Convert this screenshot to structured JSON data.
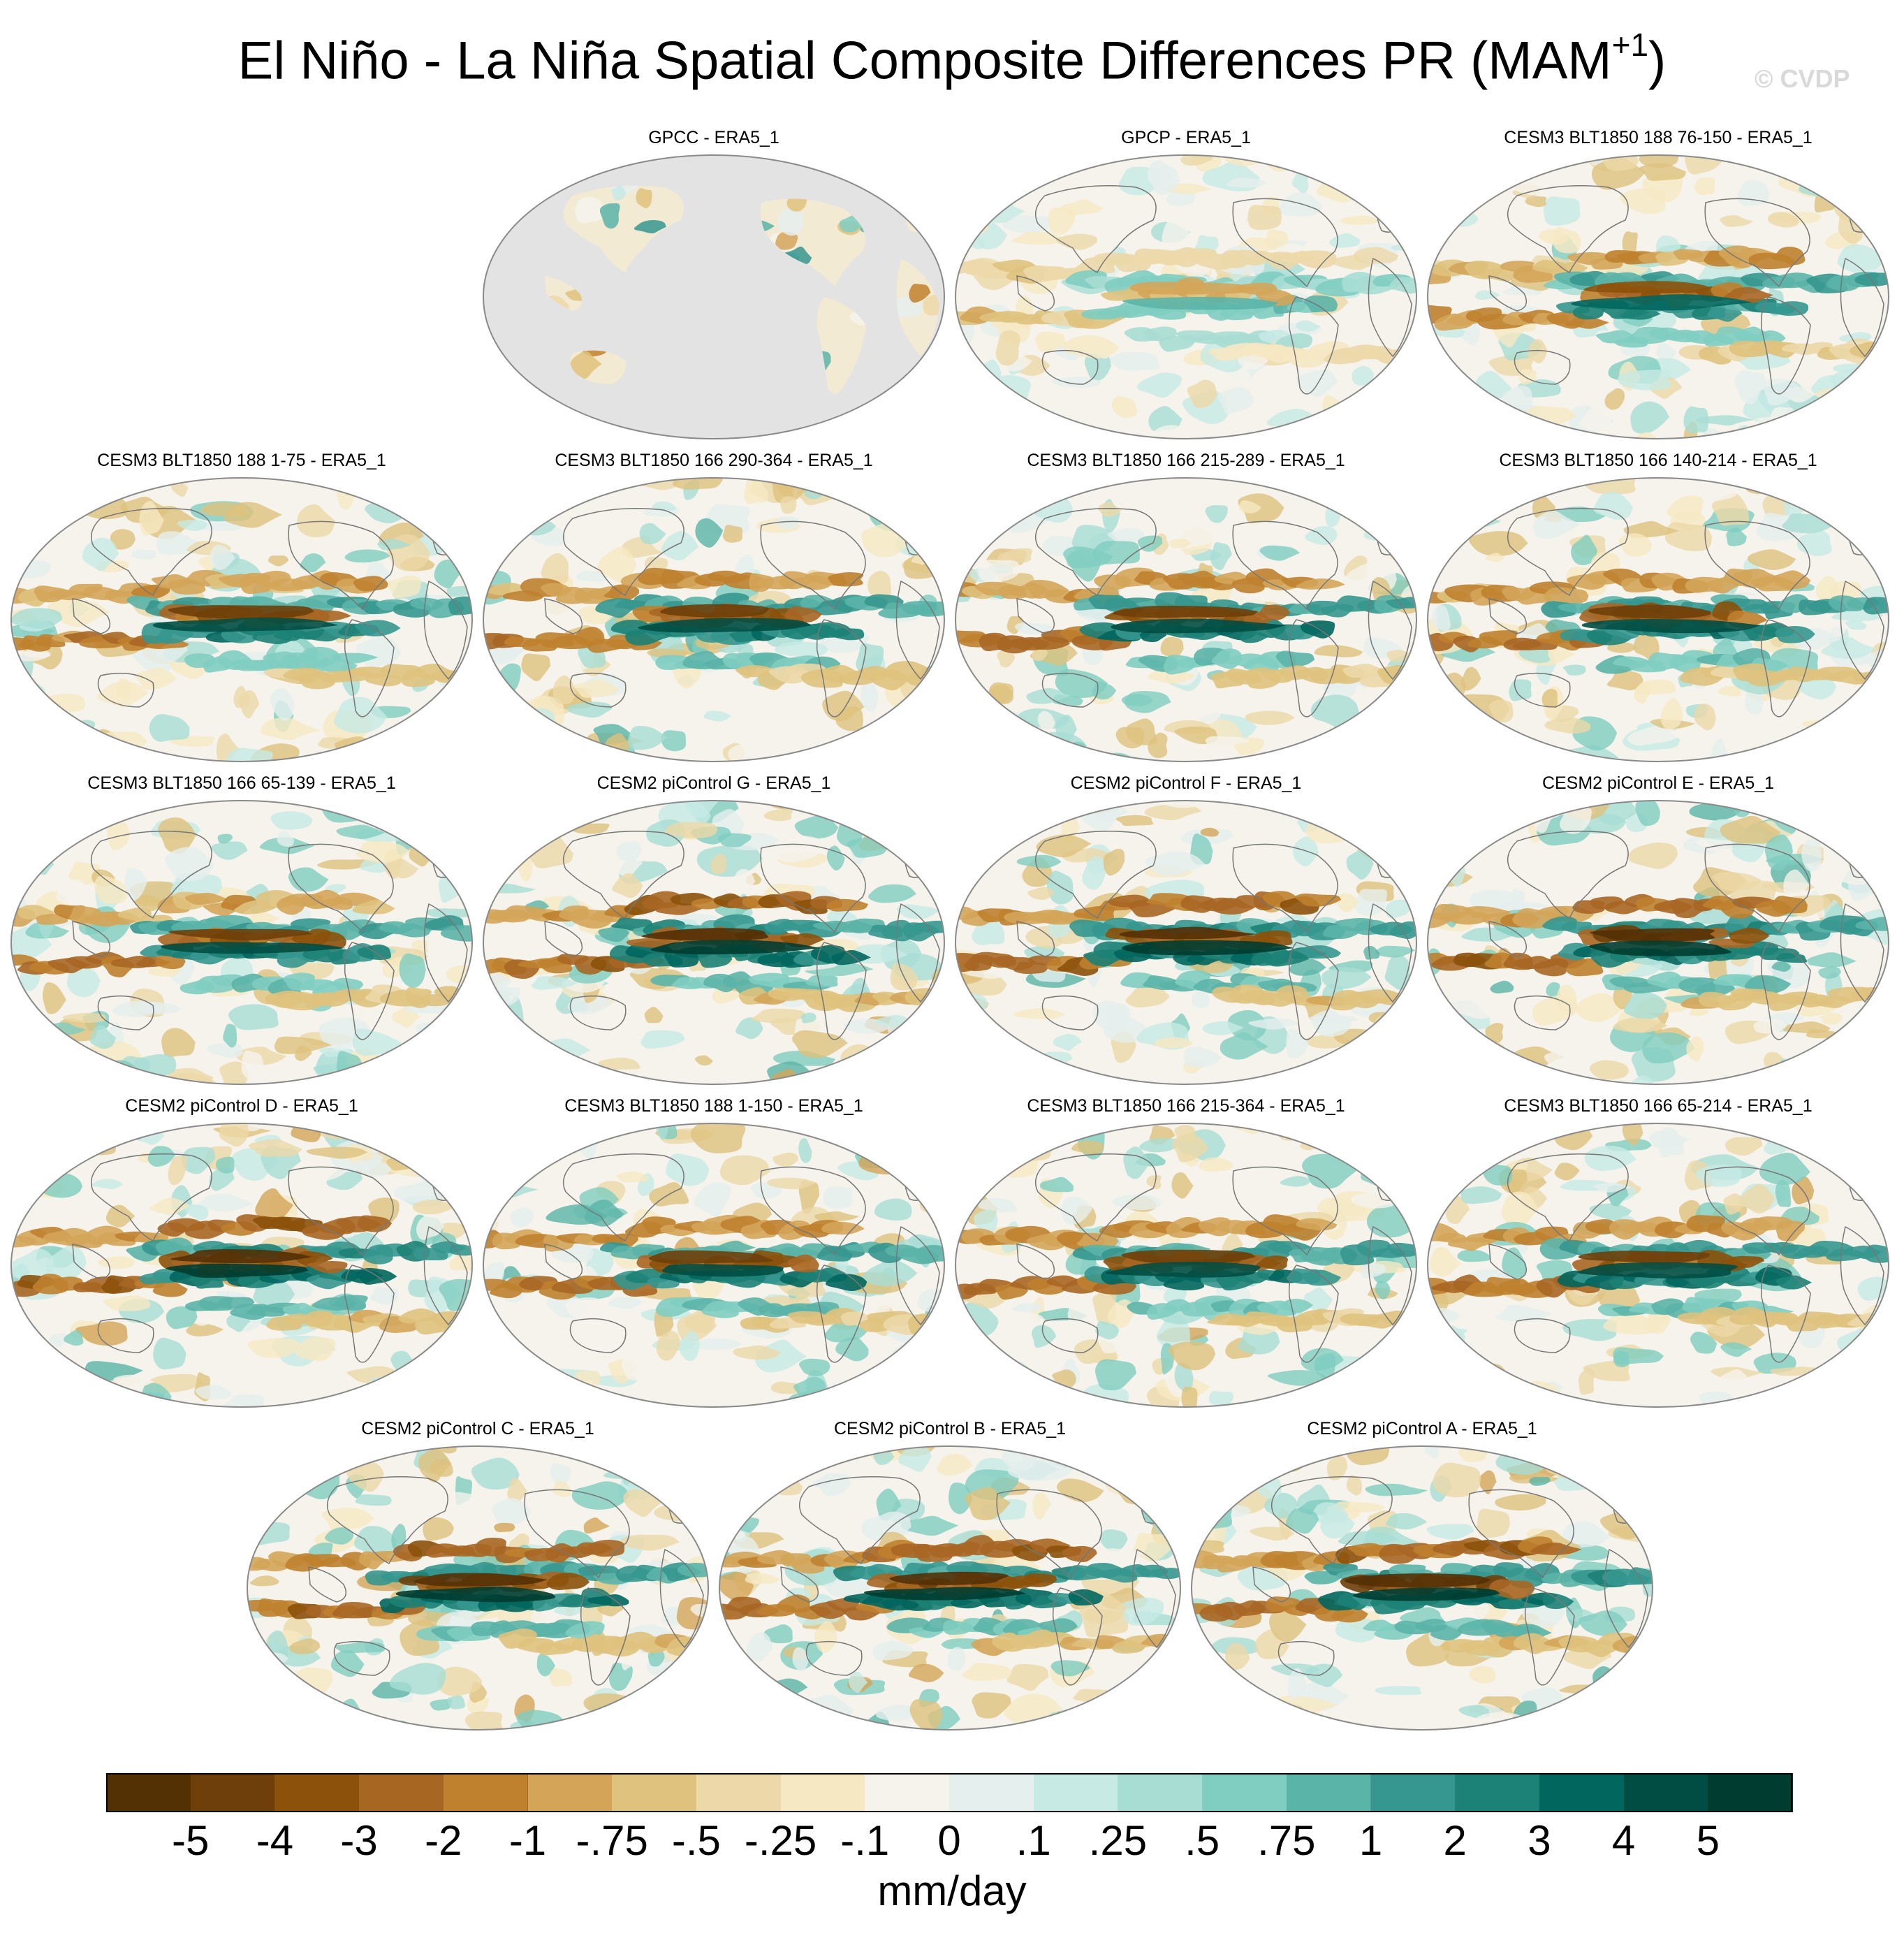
{
  "title_main": "El Niño - La Niña Spatial Composite Differences PR (MAM",
  "title_sup": "+1",
  "title_close": ")",
  "watermark": "© CVDP",
  "panels": [
    {
      "title": "GPCC - ERA5_1",
      "land_only": true
    },
    {
      "title": "GPCP - ERA5_1",
      "amp": 0.55,
      "el": 0.05
    },
    {
      "title": "CESM3 BLT1850 188 76-150 - ERA5_1",
      "amp": 0.85,
      "el": 0.2
    },
    {
      "title": "CESM3 BLT1850 188 1-75 - ERA5_1",
      "amp": 0.9,
      "el": 0.1
    },
    {
      "title": "CESM3 BLT1850 166 290-364 - ERA5_1",
      "amp": 0.95,
      "el": 0.15
    },
    {
      "title": "CESM3 BLT1850 166 215-289 - ERA5_1",
      "amp": 0.95,
      "el": 0.25
    },
    {
      "title": "CESM3 BLT1850 166 140-214 - ERA5_1",
      "amp": 0.95,
      "el": 0.15
    },
    {
      "title": "CESM3 BLT1850 166 65-139 - ERA5_1",
      "amp": 0.9,
      "el": 0.1
    },
    {
      "title": "CESM2 piControl G - ERA5_1",
      "amp": 1.0,
      "el": 0.6
    },
    {
      "title": "CESM2 piControl F - ERA5_1",
      "amp": 1.0,
      "el": 0.55
    },
    {
      "title": "CESM2 piControl E - ERA5_1",
      "amp": 1.0,
      "el": 0.55
    },
    {
      "title": "CESM2 piControl D - ERA5_1",
      "amp": 1.0,
      "el": 0.6
    },
    {
      "title": "CESM3 BLT1850 188 1-150 - ERA5_1",
      "amp": 0.95,
      "el": 0.2
    },
    {
      "title": "CESM3 BLT1850 166 215-364 - ERA5_1",
      "amp": 0.95,
      "el": 0.2
    },
    {
      "title": "CESM3 BLT1850 166 65-214 - ERA5_1",
      "amp": 0.95,
      "el": 0.2
    },
    {
      "title": "CESM2 piControl C - ERA5_1",
      "amp": 1.0,
      "el": 0.6
    },
    {
      "title": "CESM2 piControl B - ERA5_1",
      "amp": 1.0,
      "el": 0.6
    },
    {
      "title": "CESM2 piControl A - ERA5_1",
      "amp": 1.0,
      "el": 0.6
    }
  ],
  "colorbar": {
    "colors": [
      "#543005",
      "#6e3f0a",
      "#8c510a",
      "#a86623",
      "#bf812d",
      "#d4a559",
      "#dfc27d",
      "#ecd8a8",
      "#f6e8c3",
      "#f5f3ec",
      "#e5efed",
      "#c7eae5",
      "#a8ddd4",
      "#80cdc1",
      "#5bb4a8",
      "#35978f",
      "#1c8176",
      "#01665e",
      "#014d43",
      "#003c30"
    ],
    "labels": [
      "-5",
      "-4",
      "-3",
      "-2",
      "-1",
      "-.75",
      "-.5",
      "-.25",
      "-.1",
      "0",
      ".1",
      ".25",
      ".5",
      ".75",
      "1",
      "2",
      "3",
      "4",
      "5"
    ]
  },
  "units": "mm/day"
}
